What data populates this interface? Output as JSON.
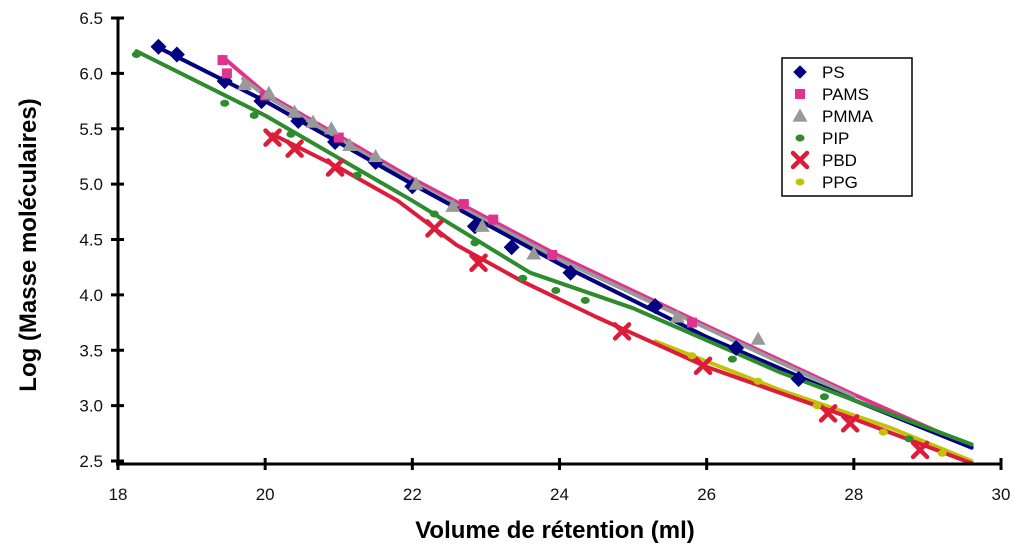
{
  "chart_data": {
    "type": "scatter",
    "title": "",
    "xlabel": "Volume de rétention (ml)",
    "ylabel": "Log (Masse moléculaires)",
    "xlim": [
      18,
      30
    ],
    "ylim": [
      2.5,
      6.5
    ],
    "xticks": [
      "18",
      "20",
      "22",
      "24",
      "26",
      "28",
      "30"
    ],
    "yticks": [
      "2.5",
      "3.0",
      "3.5",
      "4.0",
      "4.5",
      "5.0",
      "5.5",
      "6.0",
      "6.5"
    ],
    "grid": false,
    "legend_position": "top-right",
    "series": [
      {
        "name": "PS",
        "color": "#000080",
        "marker": "diamond",
        "points": [
          [
            18.55,
            6.24
          ],
          [
            18.8,
            6.17
          ],
          [
            19.45,
            5.93
          ],
          [
            19.95,
            5.75
          ],
          [
            20.45,
            5.57
          ],
          [
            20.95,
            5.38
          ],
          [
            21.5,
            5.2
          ],
          [
            22.0,
            4.98
          ],
          [
            22.85,
            4.62
          ],
          [
            23.35,
            4.43
          ],
          [
            24.15,
            4.2
          ],
          [
            25.3,
            3.9
          ],
          [
            26.4,
            3.52
          ],
          [
            27.25,
            3.24
          ]
        ],
        "fit": [
          [
            18.5,
            6.25
          ],
          [
            20,
            5.75
          ],
          [
            22,
            5.0
          ],
          [
            24,
            4.28
          ],
          [
            26,
            3.62
          ],
          [
            28,
            3.05
          ],
          [
            29.6,
            2.62
          ]
        ]
      },
      {
        "name": "PAMS",
        "color": "#e0338f",
        "marker": "square",
        "points": [
          [
            19.42,
            6.12
          ],
          [
            19.48,
            6.0
          ],
          [
            20.0,
            5.8
          ],
          [
            21.0,
            5.42
          ],
          [
            22.7,
            4.82
          ],
          [
            23.1,
            4.68
          ],
          [
            23.9,
            4.36
          ],
          [
            25.8,
            3.75
          ]
        ],
        "fit": [
          [
            19.42,
            6.15
          ],
          [
            20,
            5.82
          ],
          [
            22,
            5.05
          ],
          [
            24,
            4.35
          ],
          [
            26,
            3.72
          ],
          [
            28,
            3.1
          ],
          [
            29.6,
            2.63
          ]
        ]
      },
      {
        "name": "PMMA",
        "color": "#999999",
        "marker": "triangle",
        "points": [
          [
            19.72,
            5.9
          ],
          [
            20.05,
            5.82
          ],
          [
            20.4,
            5.65
          ],
          [
            20.65,
            5.56
          ],
          [
            20.9,
            5.5
          ],
          [
            21.15,
            5.35
          ],
          [
            21.5,
            5.25
          ],
          [
            22.05,
            5.0
          ],
          [
            22.55,
            4.8
          ],
          [
            22.95,
            4.62
          ],
          [
            23.65,
            4.37
          ],
          [
            25.6,
            3.8
          ],
          [
            26.7,
            3.6
          ]
        ],
        "fit": [
          [
            19.7,
            5.95
          ],
          [
            20,
            5.8
          ],
          [
            22,
            5.02
          ],
          [
            24,
            4.32
          ],
          [
            26,
            3.7
          ],
          [
            28,
            3.08
          ]
        ]
      },
      {
        "name": "PIP",
        "color": "#2e8b2e",
        "marker": "circle",
        "points": [
          [
            18.25,
            6.17
          ],
          [
            19.45,
            5.73
          ],
          [
            19.85,
            5.62
          ],
          [
            20.35,
            5.45
          ],
          [
            21.25,
            5.08
          ],
          [
            22.3,
            4.73
          ],
          [
            22.85,
            4.47
          ],
          [
            23.5,
            4.15
          ],
          [
            23.95,
            4.04
          ],
          [
            24.35,
            3.95
          ],
          [
            26.35,
            3.42
          ],
          [
            27.6,
            3.08
          ],
          [
            28.75,
            2.7
          ]
        ],
        "fit": [
          [
            18.25,
            6.2
          ],
          [
            20,
            5.62
          ],
          [
            22,
            4.85
          ],
          [
            23.6,
            4.2
          ],
          [
            25,
            3.88
          ],
          [
            27,
            3.3
          ],
          [
            29.6,
            2.65
          ]
        ]
      },
      {
        "name": "PBD",
        "color": "#dd1c3a",
        "marker": "cross",
        "points": [
          [
            20.1,
            5.42
          ],
          [
            20.4,
            5.32
          ],
          [
            20.95,
            5.15
          ],
          [
            22.3,
            4.6
          ],
          [
            22.9,
            4.29
          ],
          [
            24.85,
            3.67
          ],
          [
            25.95,
            3.36
          ],
          [
            27.65,
            2.93
          ],
          [
            27.95,
            2.84
          ],
          [
            28.9,
            2.6
          ]
        ],
        "fit": [
          [
            20.1,
            5.45
          ],
          [
            21,
            5.15
          ],
          [
            21.8,
            4.85
          ],
          [
            22.6,
            4.45
          ],
          [
            23.5,
            4.12
          ],
          [
            24.5,
            3.8
          ],
          [
            26,
            3.35
          ],
          [
            28,
            2.88
          ],
          [
            29.6,
            2.48
          ]
        ]
      },
      {
        "name": "PPG",
        "color": "#c2c20a",
        "marker": "circle",
        "points": [
          [
            25.8,
            3.45
          ],
          [
            26.7,
            3.22
          ],
          [
            27.5,
            3.0
          ],
          [
            28.4,
            2.76
          ],
          [
            29.2,
            2.57
          ]
        ],
        "fit": [
          [
            25.3,
            3.58
          ],
          [
            27,
            3.14
          ],
          [
            28.5,
            2.8
          ],
          [
            29.6,
            2.5
          ]
        ]
      }
    ]
  }
}
